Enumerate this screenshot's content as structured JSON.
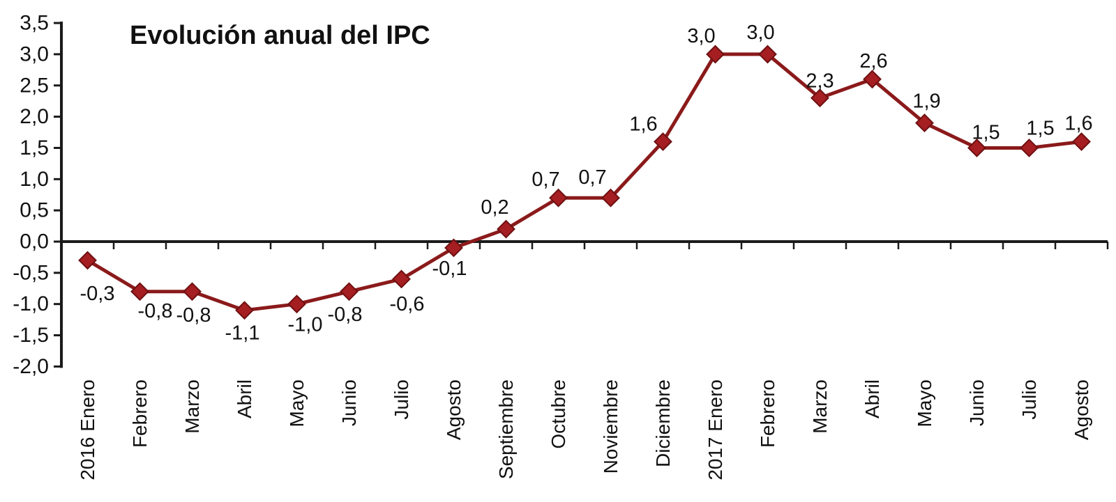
{
  "chart_data": {
    "type": "line",
    "title": "Evolución anual del IPC",
    "xlabel": "",
    "ylabel": "",
    "grid": "off",
    "legend": "none",
    "ylim": [
      -2.0,
      3.5
    ],
    "y_tick_step": 0.5,
    "categories": [
      "2016 Enero",
      "Febrero",
      "Marzo",
      "Abril",
      "Mayo",
      "Junio",
      "Julio",
      "Agosto",
      "Septiembre",
      "Octubre",
      "Noviembre",
      "Diciembre",
      "2017 Enero",
      "Febrero",
      "Marzo",
      "Abril",
      "Mayo",
      "Junio",
      "Julio",
      "Agosto"
    ],
    "values": [
      -0.3,
      -0.8,
      -0.8,
      -1.1,
      -1.0,
      -0.8,
      -0.6,
      -0.1,
      0.2,
      0.7,
      0.7,
      1.6,
      3.0,
      3.0,
      2.3,
      2.6,
      1.9,
      1.5,
      1.5,
      1.6
    ],
    "point_labels": [
      "-0,3",
      "-0,8",
      "-0,8",
      "-1,1",
      "-1,0",
      "-0,8",
      "-0,6",
      "-0,1",
      "0,2",
      "0,7",
      "0,7",
      "1,6",
      "3,0",
      "3,0",
      "2,3",
      "2,6",
      "1,9",
      "1,5",
      "1,5",
      "1,6"
    ],
    "y_tick_values": [
      3.5,
      3.0,
      2.5,
      2.0,
      1.5,
      1.0,
      0.5,
      0.0,
      -0.5,
      -1.0,
      -1.5,
      -2.0
    ],
    "y_tick_labels": [
      "3,5",
      "3,0",
      "2,5",
      "2,0",
      "1,5",
      "1,0",
      "0,5",
      "0,0",
      "-0,5",
      "-1,0",
      "-1,5",
      "-2,0"
    ],
    "marker_shape": "diamond",
    "colors": {
      "series_line": "#8B1A1B",
      "marker_fill": "#A51E21",
      "marker_stroke": "#6E1012",
      "axis": "#1a1a1a",
      "text": "#111111",
      "background": "#ffffff"
    }
  }
}
